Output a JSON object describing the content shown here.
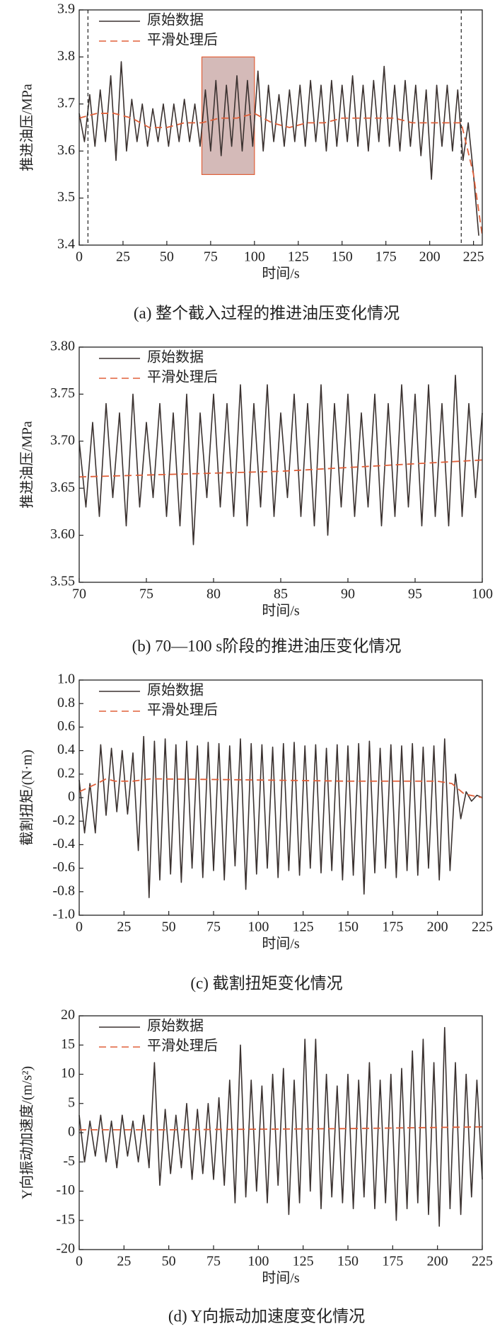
{
  "chart_data": [
    {
      "type": "line",
      "title": "(a)  整个截入过程的推进油压变化情况",
      "x_label": "时间/s",
      "y_label": "推进油压/MPa",
      "xlim": [
        0,
        230
      ],
      "xticks": [
        0,
        25,
        50,
        75,
        100,
        125,
        150,
        175,
        200,
        225
      ],
      "ylim": [
        3.4,
        3.9
      ],
      "yticks": [
        3.4,
        3.5,
        3.6,
        3.7,
        3.8,
        3.9
      ],
      "legend": "upper left",
      "highlight": {
        "x": [
          70,
          100
        ],
        "y": [
          3.55,
          3.8
        ],
        "color": "#c9a9a6"
      },
      "vlines": [
        5,
        218
      ],
      "series": [
        {
          "name": "原始数据",
          "color": "#3b3230",
          "style": "solid",
          "x": [
            0,
            3,
            6,
            9,
            12,
            15,
            18,
            21,
            24,
            27,
            30,
            33,
            36,
            39,
            42,
            45,
            48,
            51,
            54,
            57,
            60,
            63,
            66,
            69,
            72,
            75,
            78,
            81,
            84,
            87,
            90,
            93,
            96,
            99,
            102,
            105,
            108,
            111,
            114,
            117,
            120,
            123,
            126,
            129,
            132,
            135,
            138,
            141,
            144,
            147,
            150,
            153,
            156,
            159,
            162,
            165,
            168,
            171,
            174,
            177,
            180,
            183,
            186,
            189,
            192,
            195,
            198,
            201,
            204,
            207,
            210,
            213,
            216,
            219,
            222,
            225,
            228
          ],
          "values": [
            3.68,
            3.62,
            3.72,
            3.61,
            3.73,
            3.62,
            3.76,
            3.58,
            3.79,
            3.6,
            3.71,
            3.62,
            3.7,
            3.61,
            3.69,
            3.62,
            3.7,
            3.61,
            3.7,
            3.62,
            3.71,
            3.62,
            3.7,
            3.61,
            3.73,
            3.6,
            3.75,
            3.59,
            3.74,
            3.61,
            3.76,
            3.6,
            3.75,
            3.61,
            3.77,
            3.6,
            3.74,
            3.62,
            3.72,
            3.61,
            3.73,
            3.62,
            3.74,
            3.61,
            3.75,
            3.62,
            3.74,
            3.6,
            3.75,
            3.61,
            3.74,
            3.62,
            3.76,
            3.61,
            3.74,
            3.6,
            3.75,
            3.62,
            3.78,
            3.61,
            3.74,
            3.6,
            3.75,
            3.61,
            3.74,
            3.59,
            3.73,
            3.54,
            3.74,
            3.61,
            3.74,
            3.6,
            3.73,
            3.58,
            3.66,
            3.55,
            3.42
          ]
        },
        {
          "name": "平滑处理后",
          "color": "#e0603a",
          "style": "dashed",
          "x": [
            0,
            10,
            20,
            30,
            40,
            50,
            60,
            70,
            80,
            90,
            100,
            110,
            120,
            130,
            140,
            150,
            160,
            170,
            180,
            190,
            200,
            210,
            218,
            225,
            230
          ],
          "values": [
            3.67,
            3.68,
            3.68,
            3.67,
            3.65,
            3.65,
            3.66,
            3.66,
            3.67,
            3.67,
            3.68,
            3.66,
            3.65,
            3.66,
            3.66,
            3.67,
            3.67,
            3.67,
            3.67,
            3.66,
            3.66,
            3.66,
            3.66,
            3.55,
            3.42
          ]
        }
      ]
    },
    {
      "type": "line",
      "title": "(b)  70—100 s阶段的推进油压变化情况",
      "x_label": "时间/s",
      "y_label": "推进油压/MPa",
      "xlim": [
        70,
        100
      ],
      "xticks": [
        70,
        75,
        80,
        85,
        90,
        95,
        100
      ],
      "ylim": [
        3.55,
        3.8
      ],
      "yticks": [
        3.55,
        {
          "value": 3.6,
          "label": "3.60"
        },
        3.65,
        {
          "value": 3.7,
          "label": "3.70"
        },
        3.75,
        {
          "value": 3.8,
          "label": "3.80"
        }
      ],
      "legend": "upper left",
      "series": [
        {
          "name": "原始数据",
          "color": "#3b3230",
          "style": "solid",
          "x": [
            70,
            70.5,
            71,
            71.5,
            72,
            72.5,
            73,
            73.5,
            74,
            74.5,
            75,
            75.5,
            76,
            76.5,
            77,
            77.5,
            78,
            78.5,
            79,
            79.5,
            80,
            80.5,
            81,
            81.5,
            82,
            82.5,
            83,
            83.5,
            84,
            84.5,
            85,
            85.5,
            86,
            86.5,
            87,
            87.5,
            88,
            88.5,
            89,
            89.5,
            90,
            90.5,
            91,
            91.5,
            92,
            92.5,
            93,
            93.5,
            94,
            94.5,
            95,
            95.5,
            96,
            96.5,
            97,
            97.5,
            98,
            98.5,
            99,
            99.5,
            100
          ],
          "values": [
            3.7,
            3.63,
            3.72,
            3.62,
            3.74,
            3.64,
            3.73,
            3.61,
            3.75,
            3.63,
            3.72,
            3.64,
            3.74,
            3.62,
            3.73,
            3.61,
            3.75,
            3.59,
            3.73,
            3.64,
            3.75,
            3.63,
            3.74,
            3.62,
            3.76,
            3.61,
            3.74,
            3.63,
            3.76,
            3.62,
            3.73,
            3.64,
            3.75,
            3.62,
            3.74,
            3.61,
            3.76,
            3.6,
            3.74,
            3.63,
            3.75,
            3.62,
            3.73,
            3.63,
            3.75,
            3.61,
            3.74,
            3.62,
            3.76,
            3.63,
            3.75,
            3.61,
            3.76,
            3.62,
            3.74,
            3.61,
            3.77,
            3.62,
            3.74,
            3.64,
            3.73
          ]
        },
        {
          "name": "平滑处理后",
          "color": "#e0603a",
          "style": "dashed",
          "x": [
            70,
            75,
            80,
            85,
            90,
            95,
            100
          ],
          "values": [
            3.662,
            3.664,
            3.666,
            3.668,
            3.672,
            3.676,
            3.68
          ]
        }
      ]
    },
    {
      "type": "line",
      "title": "(c)  截割扭矩变化情况",
      "x_label": "时间/s",
      "y_label": "截割扭矩/(N·m)",
      "xlim": [
        0,
        225
      ],
      "xticks": [
        0,
        25,
        50,
        75,
        100,
        125,
        150,
        175,
        200,
        225
      ],
      "ylim": [
        -1,
        1
      ],
      "yticks": [
        {
          "value": -1,
          "label": "-1.0"
        },
        -0.8,
        -0.6,
        -0.4,
        -0.2,
        0,
        0.2,
        0.4,
        0.6,
        0.8,
        {
          "value": 1,
          "label": "1.0"
        }
      ],
      "legend": "upper left",
      "series": [
        {
          "name": "原始数据",
          "color": "#3b3230",
          "style": "solid",
          "x": [
            0,
            3,
            6,
            9,
            12,
            15,
            18,
            21,
            24,
            27,
            30,
            33,
            36,
            39,
            42,
            45,
            48,
            51,
            54,
            57,
            60,
            63,
            66,
            69,
            72,
            75,
            78,
            81,
            84,
            87,
            90,
            93,
            96,
            99,
            102,
            105,
            108,
            111,
            114,
            117,
            120,
            123,
            126,
            129,
            132,
            135,
            138,
            141,
            144,
            147,
            150,
            153,
            156,
            159,
            162,
            165,
            168,
            171,
            174,
            177,
            180,
            183,
            186,
            189,
            192,
            195,
            198,
            201,
            204,
            207,
            210,
            213,
            216,
            219,
            222,
            225
          ],
          "values": [
            0.15,
            -0.3,
            0.12,
            -0.3,
            0.45,
            -0.15,
            0.42,
            -0.12,
            0.4,
            -0.14,
            0.38,
            -0.45,
            0.52,
            -0.85,
            0.48,
            -0.7,
            0.5,
            -0.65,
            0.45,
            -0.72,
            0.48,
            -0.6,
            0.44,
            -0.68,
            0.47,
            -0.62,
            0.46,
            -0.7,
            0.44,
            -0.58,
            0.5,
            -0.78,
            0.46,
            -0.65,
            0.45,
            -0.6,
            0.43,
            -0.68,
            0.46,
            -0.62,
            0.47,
            -0.66,
            0.44,
            -0.6,
            0.45,
            -0.64,
            0.42,
            -0.62,
            0.45,
            -0.7,
            0.44,
            -0.66,
            0.46,
            -0.82,
            0.48,
            -0.64,
            0.42,
            -0.6,
            0.45,
            -0.68,
            0.44,
            -0.62,
            0.46,
            -0.66,
            0.43,
            -0.6,
            0.44,
            -0.7,
            0.5,
            -0.62,
            0.2,
            -0.18,
            0.05,
            -0.03,
            0.02,
            0
          ]
        },
        {
          "name": "平滑处理后",
          "color": "#e0603a",
          "style": "dashed",
          "x": [
            0,
            10,
            15,
            20,
            30,
            40,
            100,
            150,
            200,
            208,
            215,
            225
          ],
          "values": [
            0.05,
            0.12,
            0.16,
            0.14,
            0.14,
            0.16,
            0.15,
            0.14,
            0.14,
            0.12,
            0.03,
            0
          ]
        }
      ]
    },
    {
      "type": "line",
      "title": "(d)  Y向振动加速度变化情况",
      "x_label": "时间/s",
      "y_label": "Y向振动加速度/(m/s²)",
      "xlim": [
        0,
        225
      ],
      "xticks": [
        0,
        25,
        50,
        75,
        100,
        125,
        150,
        175,
        200,
        225
      ],
      "ylim": [
        -20,
        20
      ],
      "yticks": [
        -20,
        -15,
        -10,
        -5,
        0,
        5,
        10,
        15,
        20
      ],
      "legend": "upper left",
      "series": [
        {
          "name": "原始数据",
          "color": "#3b3230",
          "style": "solid",
          "x": [
            0,
            3,
            6,
            9,
            12,
            15,
            18,
            21,
            24,
            27,
            30,
            33,
            36,
            39,
            42,
            45,
            48,
            51,
            54,
            57,
            60,
            63,
            66,
            69,
            72,
            75,
            78,
            81,
            84,
            87,
            90,
            93,
            96,
            99,
            102,
            105,
            108,
            111,
            114,
            117,
            120,
            123,
            126,
            129,
            132,
            135,
            138,
            141,
            144,
            147,
            150,
            153,
            156,
            159,
            162,
            165,
            168,
            171,
            174,
            177,
            180,
            183,
            186,
            189,
            192,
            195,
            198,
            201,
            204,
            207,
            210,
            213,
            216,
            219,
            222,
            225
          ],
          "values": [
            3,
            -5,
            2,
            -4,
            3,
            -5,
            2,
            -6,
            3,
            -4,
            2,
            -5,
            3,
            -6,
            12,
            -9,
            4,
            -7,
            3,
            -6,
            5,
            -8,
            4,
            -7,
            5,
            -8,
            6,
            -9,
            9,
            -12,
            15,
            -11,
            9,
            -10,
            8,
            -12,
            10,
            -9,
            11,
            -14,
            9,
            -12,
            16,
            -10,
            16,
            -13,
            10,
            -11,
            8,
            -12,
            10,
            -13,
            9,
            -11,
            12,
            -13,
            9,
            -12,
            10,
            -15,
            11,
            -13,
            14,
            -12,
            16,
            -14,
            12,
            -16,
            18,
            -13,
            12,
            -14,
            10,
            -11,
            9,
            -8
          ]
        },
        {
          "name": "平滑处理后",
          "color": "#e0603a",
          "style": "dashed",
          "x": [
            0,
            50,
            100,
            150,
            200,
            225
          ],
          "values": [
            0.5,
            0.5,
            0.6,
            0.7,
            0.9,
            1.0
          ]
        }
      ]
    }
  ]
}
